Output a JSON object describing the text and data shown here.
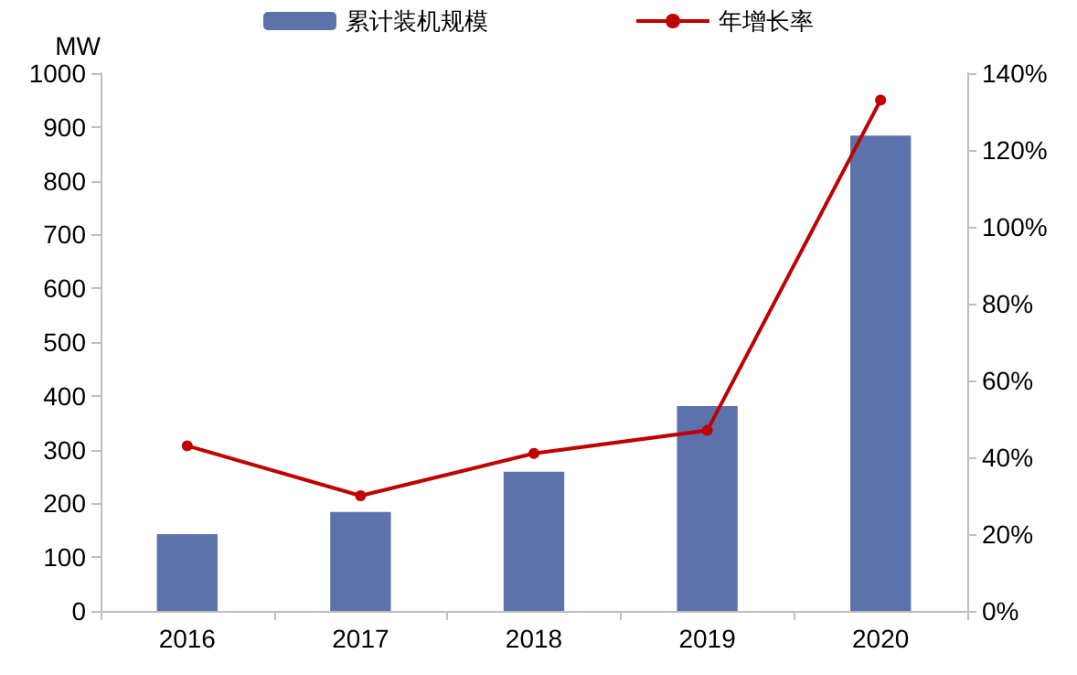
{
  "chart_data": {
    "type": "bar",
    "ylabel": "MW",
    "categories": [
      "2016",
      "2017",
      "2018",
      "2019",
      "2020"
    ],
    "series": [
      {
        "name": "累计装机规模",
        "color": "#5b73aa",
        "values": [
          143,
          184,
          259,
          381,
          884
        ]
      },
      {
        "name": "年增长率",
        "type": "line",
        "axis": "y2",
        "color": "#c00000",
        "values": [
          43,
          30,
          41,
          47,
          133
        ]
      }
    ],
    "ylim": [
      0,
      1000
    ],
    "yticks": [
      0,
      100,
      200,
      300,
      400,
      500,
      600,
      700,
      800,
      900,
      1000
    ],
    "y2lim": [
      0,
      140
    ],
    "y2ticks": [
      {
        "value": 0,
        "label": "0%"
      },
      {
        "value": 20,
        "label": "20%"
      },
      {
        "value": 40,
        "label": "40%"
      },
      {
        "value": 60,
        "label": "60%"
      },
      {
        "value": 80,
        "label": "80%"
      },
      {
        "value": 100,
        "label": "100%"
      },
      {
        "value": 120,
        "label": "120%"
      },
      {
        "value": 140,
        "label": "140%"
      }
    ],
    "legend": "top",
    "marker": "circle",
    "grid": false
  }
}
